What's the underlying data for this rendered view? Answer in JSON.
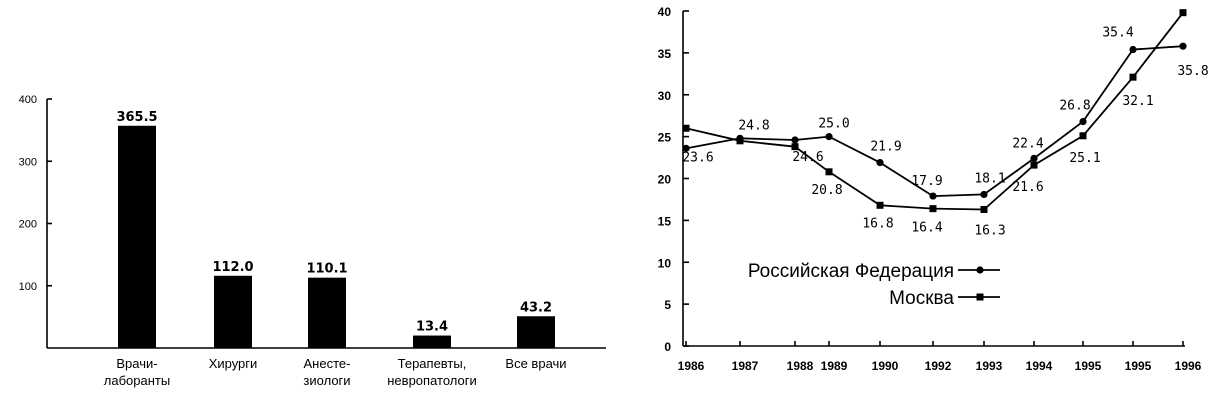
{
  "chart_data": [
    {
      "type": "bar",
      "categories": [
        [
          "Врачи-",
          "лаборанты"
        ],
        [
          "Хирурги"
        ],
        [
          "Анесте-",
          "зиологи"
        ],
        [
          "Терапевты,",
          "невропатологи"
        ],
        [
          "Все врачи"
        ]
      ],
      "values": [
        365.5,
        112.0,
        110.1,
        13.4,
        43.2
      ],
      "value_labels": [
        "365.5",
        "112.0",
        "110.1",
        "13.4",
        "43.2"
      ],
      "bar_values": [
        357,
        116,
        113,
        20,
        51
      ],
      "yticks": [
        "400",
        "300",
        "200",
        "100"
      ],
      "ytick_values": [
        400,
        300,
        200,
        100
      ],
      "ylim": [
        0,
        400
      ],
      "color": "#000000"
    },
    {
      "type": "line",
      "x": [
        "1986",
        "1987",
        "1988",
        "1989",
        "1990",
        "1992",
        "1993",
        "1994",
        "1995",
        "1995",
        "1996"
      ],
      "yticks": [
        "0",
        "5",
        "10",
        "15",
        "20",
        "25",
        "30",
        "35",
        "40"
      ],
      "ytick_values": [
        0,
        5,
        10,
        15,
        20,
        25,
        30,
        35,
        40
      ],
      "ylim": [
        0,
        40
      ],
      "series": [
        {
          "name": "Российская Федерация",
          "marker": "circle",
          "values": [
            23.6,
            24.8,
            24.6,
            25.0,
            21.9,
            17.9,
            18.1,
            22.4,
            26.8,
            35.4,
            35.8
          ],
          "labels": [
            "23.6",
            "24.8",
            "24.6",
            "25.0",
            "21.9",
            "17.9",
            "18.1",
            "22.4",
            "26.8",
            "35.4",
            "35.8"
          ]
        },
        {
          "name": "Москва",
          "marker": "square",
          "values": [
            26.0,
            24.5,
            23.8,
            20.8,
            16.8,
            16.4,
            16.3,
            21.6,
            25.1,
            32.1,
            39.8
          ],
          "labels": [
            "",
            "",
            "",
            "20.8",
            "16.8",
            "16.4",
            "16.3",
            "21.6",
            "25.1",
            "32.1",
            ""
          ]
        }
      ],
      "legend": {
        "placement": "center-left",
        "entries": [
          "Российская Федерация",
          "Москва"
        ]
      }
    }
  ]
}
